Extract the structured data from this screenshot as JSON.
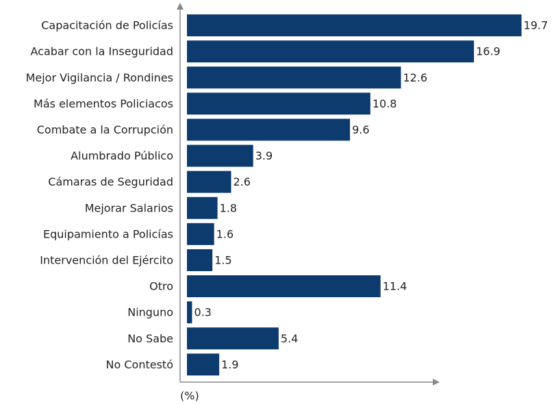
{
  "chart_data": {
    "type": "hbar",
    "x_label": "(%)",
    "categories": [
      "Capacitación de Policías",
      "Acabar con la Inseguridad",
      "Mejor Vigilancia / Rondines",
      "Más elementos Policiacos",
      "Combate a la Corrupción",
      "Alumbrado Público",
      "Cámaras de Seguridad",
      "Mejorar Salarios",
      "Equipamiento a Policías",
      "Intervención del Ejército",
      "Otro",
      "Ninguno",
      "No Sabe",
      "No Contestó"
    ],
    "values": [
      19.7,
      16.9,
      12.6,
      10.8,
      9.6,
      3.9,
      2.6,
      1.8,
      1.6,
      1.5,
      11.4,
      0.3,
      5.4,
      1.9
    ],
    "color": "#0d3b6e",
    "xlim": [
      0,
      20
    ]
  }
}
